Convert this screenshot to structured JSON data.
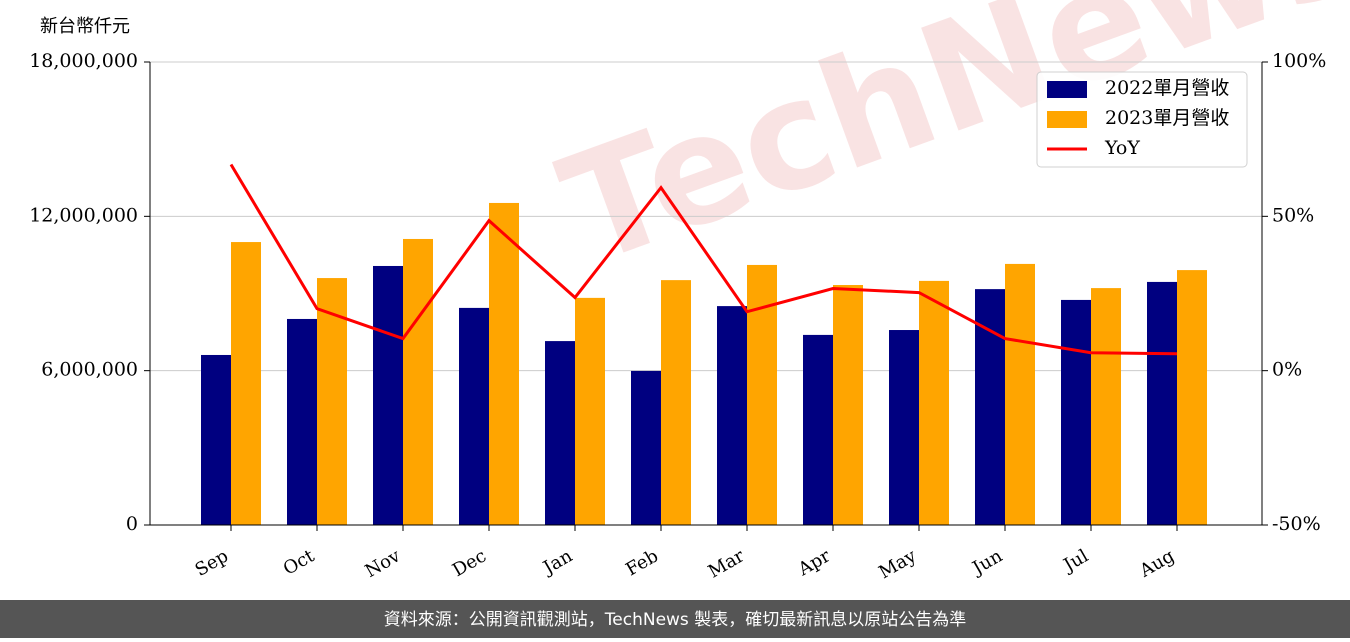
{
  "chart_data": {
    "type": "bar_line",
    "y_label": "新台幣仟元",
    "categories": [
      "Sep",
      "Oct",
      "Nov",
      "Dec",
      "Jan",
      "Feb",
      "Mar",
      "Apr",
      "May",
      "Jun",
      "Jul",
      "Aug"
    ],
    "series": [
      {
        "name": "2022單月營收",
        "color": "#000080",
        "type": "bar",
        "values": [
          6610000,
          8010000,
          10070000,
          8440000,
          7150000,
          5990000,
          8510000,
          7390000,
          7580000,
          9170000,
          8750000,
          9450000
        ]
      },
      {
        "name": "2023單月營收",
        "color": "#ffa500",
        "type": "bar",
        "values": [
          11000000,
          9600000,
          11120000,
          12520000,
          8830000,
          9520000,
          10110000,
          9330000,
          9490000,
          10150000,
          9210000,
          9910000
        ]
      },
      {
        "name": "YoY",
        "color": "#ff0000",
        "type": "line",
        "axis": "y2",
        "values": [
          66.8,
          20.1,
          10.4,
          48.6,
          23.7,
          59.3,
          19.1,
          26.6,
          25.3,
          10.4,
          5.8,
          5.5
        ]
      }
    ],
    "ylim": [
      0,
      18000000
    ],
    "yticks": [
      0,
      {
        "value": 6000000,
        "label": "6,000,000"
      },
      {
        "value": 12000000,
        "label": "12,000,000"
      },
      {
        "value": 18000000,
        "label": "18,000,000"
      }
    ],
    "y2lim": [
      -50,
      100
    ],
    "y2ticks": [
      {
        "value": -50,
        "label": "-50%"
      },
      {
        "value": 0,
        "label": "0%"
      },
      {
        "value": 50,
        "label": "50%"
      },
      {
        "value": 100,
        "label": "100%"
      }
    ],
    "grid": true,
    "legend": "upper right",
    "watermark": "TechNews",
    "footer": "資料來源：公開資訊觀測站，TechNews 製表，確切最新訊息以原站公告為準"
  }
}
